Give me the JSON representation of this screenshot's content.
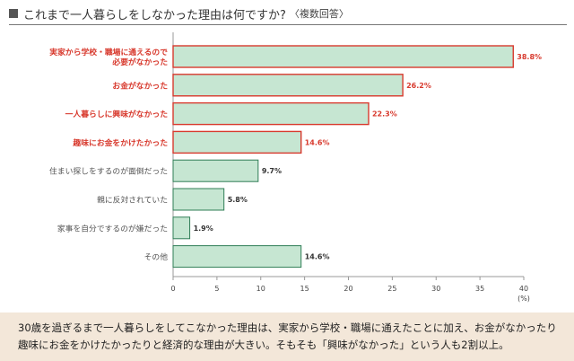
{
  "header": {
    "title": "これまで一人暮らしをしなかった理由は何ですか?",
    "subtitle": "〈複数回答〉"
  },
  "chart_data": {
    "type": "bar",
    "orientation": "horizontal",
    "categories": [
      [
        "実家から学校・職場に通えるので",
        "必要がなかった"
      ],
      [
        "お金がなかった"
      ],
      [
        "一人暮らしに興味がなかった"
      ],
      [
        "趣味にお金をかけたかった"
      ],
      [
        "住まい探しをするのが面倒だった"
      ],
      [
        "親に反対されていた"
      ],
      [
        "家事を自分でするのが嫌だった"
      ],
      [
        "その他"
      ]
    ],
    "values": [
      38.8,
      26.2,
      22.3,
      14.6,
      9.7,
      5.8,
      1.9,
      14.6
    ],
    "value_labels": [
      "38.8%",
      "26.2%",
      "22.3%",
      "14.6%",
      "9.7%",
      "5.8%",
      "1.9%",
      "14.6%"
    ],
    "highlighted": [
      true,
      true,
      true,
      true,
      false,
      false,
      false,
      false
    ],
    "xlim": [
      0,
      40
    ],
    "xticks": [
      0,
      5,
      10,
      15,
      20,
      25,
      30,
      35,
      40
    ],
    "xunit": "(%)",
    "colors": {
      "bar_fill": "#c6e6d2",
      "bar_stroke": "#2f7d56",
      "highlight": "#d83a2e",
      "label": "#555555",
      "value": "#333333",
      "axis": "#999999"
    }
  },
  "caption": {
    "line1": "30歳を過ぎるまで一人暮らしをしてこなかった理由は、実家から学校・職場に通えたことに加え、お金がなかったり",
    "line2": "趣味にお金をかけたかったりと経済的な理由が大きい。そもそも「興味がなかった」という人も2割以上。"
  }
}
